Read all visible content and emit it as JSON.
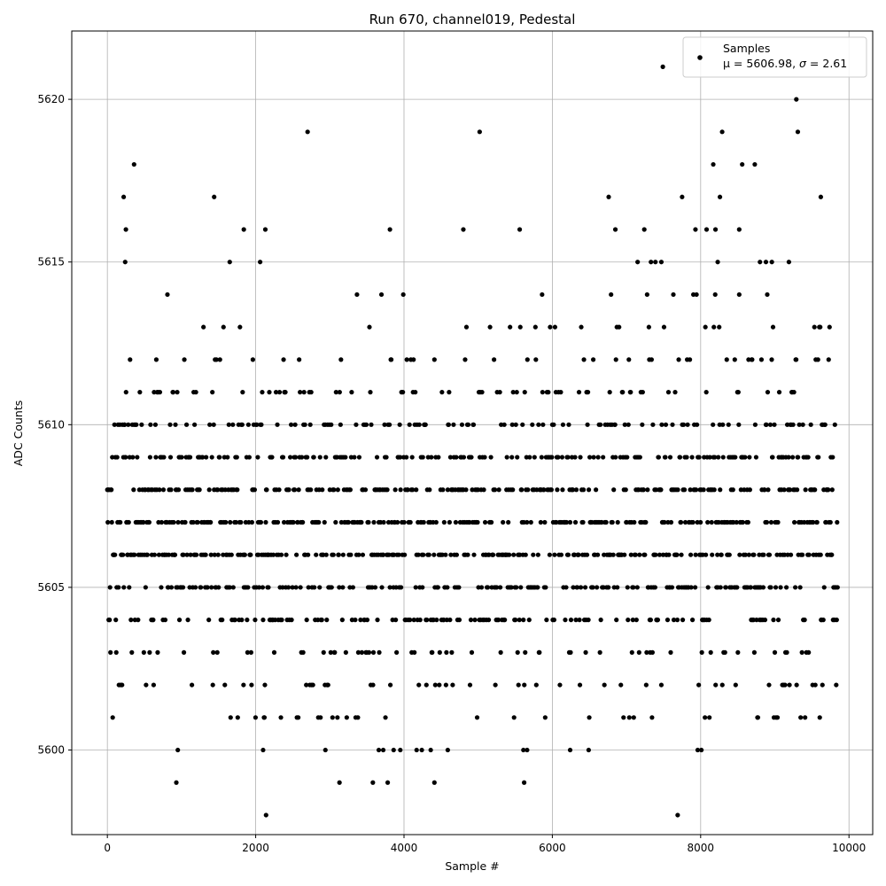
{
  "chart_data": {
    "type": "scatter",
    "title": "Run 670, channel019, Pedestal",
    "xlabel": "Sample #",
    "ylabel": "ADC Counts",
    "xlim": [
      -480,
      10320
    ],
    "ylim": [
      5597.4,
      5622.1
    ],
    "xticks": [
      0,
      2000,
      4000,
      6000,
      8000,
      10000
    ],
    "xtick_labels": [
      "0",
      "2000",
      "4000",
      "6000",
      "8000",
      "10000"
    ],
    "yticks": [
      5600,
      5605,
      5610,
      5615,
      5620
    ],
    "ytick_labels": [
      "5600",
      "5605",
      "5610",
      "5615",
      "5620"
    ],
    "grid": true,
    "marker_color": "#000000",
    "legend": {
      "placement": "top-right",
      "entry_name": "Samples",
      "entry_stats_prefix": "μ = 5606.98, ",
      "entry_stats_sigma": "σ",
      "entry_stats_suffix": " = 2.61"
    },
    "n_samples": 9850,
    "mean": 5606.98,
    "sigma": 2.61,
    "outliers": [
      {
        "x": 7490,
        "y": 5621
      },
      {
        "x": 9290,
        "y": 5620
      },
      {
        "x": 2700,
        "y": 5619
      },
      {
        "x": 5020,
        "y": 5619
      },
      {
        "x": 8290,
        "y": 5619
      },
      {
        "x": 9310,
        "y": 5619
      },
      {
        "x": 360,
        "y": 5618
      },
      {
        "x": 8170,
        "y": 5618
      },
      {
        "x": 8560,
        "y": 5618
      },
      {
        "x": 8730,
        "y": 5618
      },
      {
        "x": 220,
        "y": 5617
      },
      {
        "x": 1440,
        "y": 5617
      },
      {
        "x": 6760,
        "y": 5617
      },
      {
        "x": 7750,
        "y": 5617
      },
      {
        "x": 8260,
        "y": 5617
      },
      {
        "x": 9620,
        "y": 5617
      },
      {
        "x": 250,
        "y": 5616
      },
      {
        "x": 1840,
        "y": 5616
      },
      {
        "x": 2130,
        "y": 5616
      },
      {
        "x": 3810,
        "y": 5616
      },
      {
        "x": 4800,
        "y": 5616
      },
      {
        "x": 5560,
        "y": 5616
      },
      {
        "x": 6850,
        "y": 5616
      },
      {
        "x": 7240,
        "y": 5616
      },
      {
        "x": 7930,
        "y": 5616
      },
      {
        "x": 8080,
        "y": 5616
      },
      {
        "x": 8200,
        "y": 5616
      },
      {
        "x": 8520,
        "y": 5616
      },
      {
        "x": 240,
        "y": 5615
      },
      {
        "x": 1650,
        "y": 5615
      },
      {
        "x": 2060,
        "y": 5615
      },
      {
        "x": 7150,
        "y": 5615
      },
      {
        "x": 7330,
        "y": 5615
      },
      {
        "x": 7390,
        "y": 5615
      },
      {
        "x": 7470,
        "y": 5615
      },
      {
        "x": 8230,
        "y": 5615
      },
      {
        "x": 8800,
        "y": 5615
      },
      {
        "x": 8880,
        "y": 5615
      },
      {
        "x": 8960,
        "y": 5615
      },
      {
        "x": 9190,
        "y": 5615
      },
      {
        "x": 930,
        "y": 5599
      },
      {
        "x": 3130,
        "y": 5599
      },
      {
        "x": 3580,
        "y": 5599
      },
      {
        "x": 3780,
        "y": 5599
      },
      {
        "x": 4410,
        "y": 5599
      },
      {
        "x": 5620,
        "y": 5599
      },
      {
        "x": 2140,
        "y": 5598
      },
      {
        "x": 7690,
        "y": 5598
      },
      {
        "x": 950,
        "y": 5600
      },
      {
        "x": 2100,
        "y": 5600
      },
      {
        "x": 2940,
        "y": 5600
      },
      {
        "x": 3660,
        "y": 5600
      },
      {
        "x": 3720,
        "y": 5600
      },
      {
        "x": 3860,
        "y": 5600
      },
      {
        "x": 3950,
        "y": 5600
      },
      {
        "x": 4170,
        "y": 5600
      },
      {
        "x": 4240,
        "y": 5600
      },
      {
        "x": 4360,
        "y": 5600
      },
      {
        "x": 4590,
        "y": 5600
      },
      {
        "x": 5610,
        "y": 5600
      },
      {
        "x": 5660,
        "y": 5600
      },
      {
        "x": 6240,
        "y": 5600
      },
      {
        "x": 6490,
        "y": 5600
      },
      {
        "x": 7960,
        "y": 5600
      },
      {
        "x": 8010,
        "y": 5600
      }
    ]
  }
}
